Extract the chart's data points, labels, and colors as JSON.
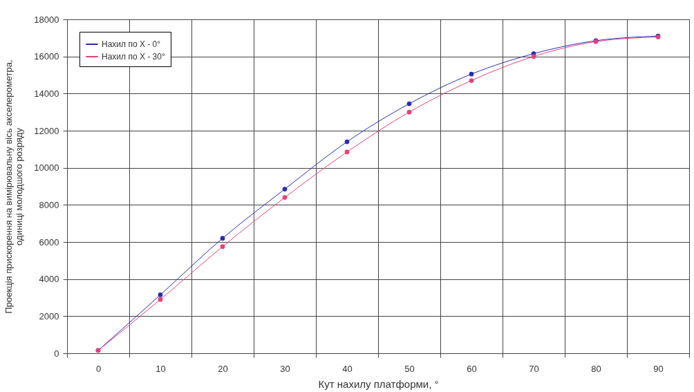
{
  "chart_data": {
    "type": "line",
    "xlabel": "Кут нахилу платформи, °",
    "ylabel": "Проекція прискорення на вимірювальну вісь акселерометра,\nодиниці молодшого розряду",
    "categories": [
      "0",
      "10",
      "20",
      "30",
      "40",
      "50",
      "60",
      "70",
      "80",
      "90"
    ],
    "series": [
      {
        "name": "Нахил по X - 0°",
        "color": "#2a2ab8",
        "values": [
          150,
          3150,
          6200,
          8850,
          11400,
          13450,
          15050,
          16150,
          16850,
          17100
        ]
      },
      {
        "name": "Нахил по X - 30°",
        "color": "#e8407a",
        "values": [
          150,
          2900,
          5750,
          8400,
          10850,
          13000,
          14700,
          16000,
          16800,
          17050
        ]
      }
    ],
    "ylim": [
      0,
      18000
    ],
    "yticks": [
      0,
      2000,
      4000,
      6000,
      8000,
      10000,
      12000,
      14000,
      16000,
      18000
    ],
    "grid": true,
    "legend": "top left",
    "marker": "circle",
    "line_style": "solid"
  }
}
